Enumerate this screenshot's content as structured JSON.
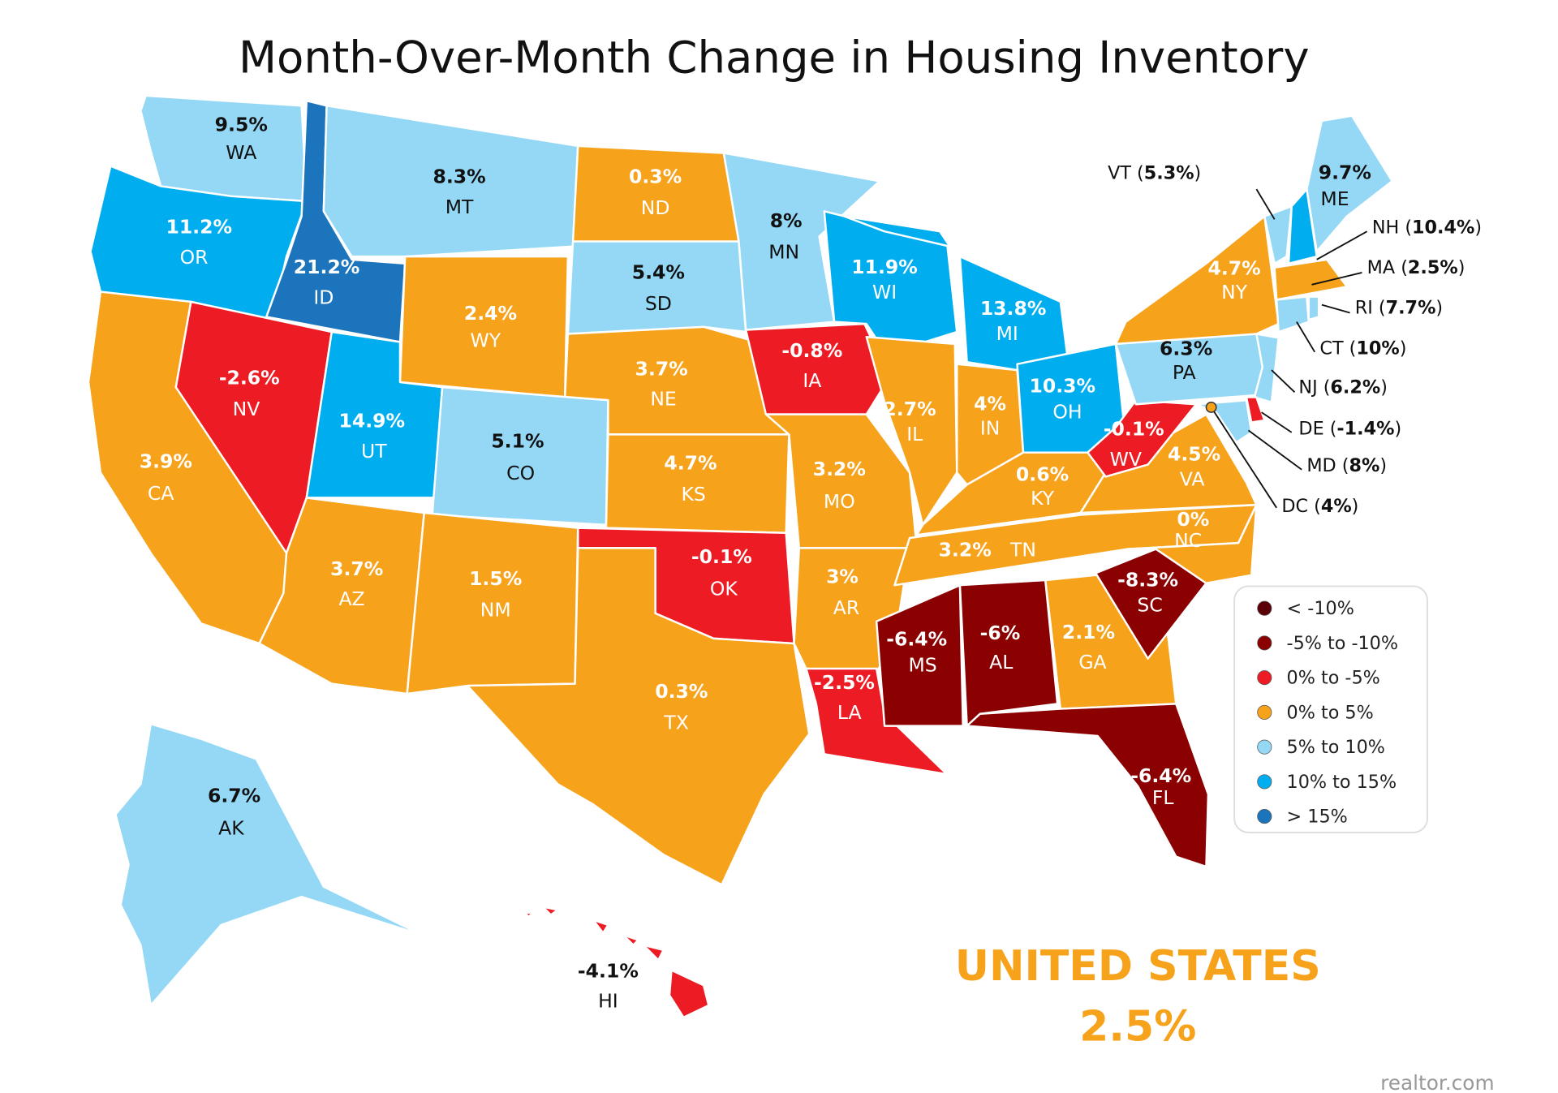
{
  "title": "Month-Over-Month Change in Housing Inventory",
  "national": {
    "label": "UNITED STATES",
    "value": "2.5%"
  },
  "source": "realtor.com",
  "colors": {
    "lt_neg10": "#5c0008",
    "neg5_neg10": "#8b0000",
    "neg0_neg5": "#ed1c24",
    "0_5": "#f7a21b",
    "5_10": "#94d8f6",
    "10_15": "#00aeef",
    "gt15": "#1c75bc"
  },
  "legend": [
    {
      "label": "< -10%",
      "key": "lt_neg10"
    },
    {
      "label": "-5% to -10%",
      "key": "neg5_neg10"
    },
    {
      "label": "0% to -5%",
      "key": "neg0_neg5"
    },
    {
      "label": "0% to 5%",
      "key": "0_5"
    },
    {
      "label": "5% to 10%",
      "key": "5_10"
    },
    {
      "label": "10% to 15%",
      "key": "10_15"
    },
    {
      "label": "> 15%",
      "key": "gt15"
    }
  ],
  "states": [
    {
      "abbr": "WA",
      "value": "9.5%",
      "key": "5_10"
    },
    {
      "abbr": "OR",
      "value": "11.2%",
      "key": "10_15"
    },
    {
      "abbr": "ID",
      "value": "21.2%",
      "key": "gt15"
    },
    {
      "abbr": "MT",
      "value": "8.3%",
      "key": "5_10"
    },
    {
      "abbr": "ND",
      "value": "0.3%",
      "key": "0_5"
    },
    {
      "abbr": "SD",
      "value": "5.4%",
      "key": "5_10"
    },
    {
      "abbr": "WY",
      "value": "2.4%",
      "key": "0_5"
    },
    {
      "abbr": "NE",
      "value": "3.7%",
      "key": "0_5"
    },
    {
      "abbr": "CA",
      "value": "3.9%",
      "key": "0_5"
    },
    {
      "abbr": "NV",
      "value": "-2.6%",
      "key": "neg0_neg5"
    },
    {
      "abbr": "UT",
      "value": "14.9%",
      "key": "10_15"
    },
    {
      "abbr": "CO",
      "value": "5.1%",
      "key": "5_10"
    },
    {
      "abbr": "AZ",
      "value": "3.7%",
      "key": "0_5"
    },
    {
      "abbr": "NM",
      "value": "1.5%",
      "key": "0_5"
    },
    {
      "abbr": "KS",
      "value": "4.7%",
      "key": "0_5"
    },
    {
      "abbr": "OK",
      "value": "-0.1%",
      "key": "neg0_neg5"
    },
    {
      "abbr": "TX",
      "value": "0.3%",
      "key": "0_5"
    },
    {
      "abbr": "MN",
      "value": "8%",
      "key": "5_10"
    },
    {
      "abbr": "IA",
      "value": "-0.8%",
      "key": "neg0_neg5"
    },
    {
      "abbr": "MO",
      "value": "3.2%",
      "key": "0_5"
    },
    {
      "abbr": "AR",
      "value": "3%",
      "key": "0_5"
    },
    {
      "abbr": "LA",
      "value": "-2.5%",
      "key": "neg0_neg5"
    },
    {
      "abbr": "WI",
      "value": "11.9%",
      "key": "10_15"
    },
    {
      "abbr": "IL",
      "value": "2.7%",
      "key": "0_5"
    },
    {
      "abbr": "MI",
      "value": "13.8%",
      "key": "10_15"
    },
    {
      "abbr": "IN",
      "value": "4%",
      "key": "0_5"
    },
    {
      "abbr": "OH",
      "value": "10.3%",
      "key": "10_15"
    },
    {
      "abbr": "KY",
      "value": "0.6%",
      "key": "0_5"
    },
    {
      "abbr": "TN",
      "value": "3.2%",
      "key": "0_5"
    },
    {
      "abbr": "MS",
      "value": "-6.4%",
      "key": "neg5_neg10"
    },
    {
      "abbr": "AL",
      "value": "-6%",
      "key": "neg5_neg10"
    },
    {
      "abbr": "GA",
      "value": "2.1%",
      "key": "0_5"
    },
    {
      "abbr": "FL",
      "value": "-6.4%",
      "key": "neg5_neg10"
    },
    {
      "abbr": "SC",
      "value": "-8.3%",
      "key": "neg5_neg10"
    },
    {
      "abbr": "NC",
      "value": "0%",
      "key": "0_5"
    },
    {
      "abbr": "VA",
      "value": "4.5%",
      "key": "0_5"
    },
    {
      "abbr": "WV",
      "value": "-0.1%",
      "key": "neg0_neg5"
    },
    {
      "abbr": "PA",
      "value": "6.3%",
      "key": "5_10"
    },
    {
      "abbr": "NY",
      "value": "4.7%",
      "key": "0_5"
    },
    {
      "abbr": "ME",
      "value": "9.7%",
      "key": "5_10"
    },
    {
      "abbr": "VT",
      "value": "5.3%",
      "key": "5_10"
    },
    {
      "abbr": "NH",
      "value": "10.4%",
      "key": "10_15"
    },
    {
      "abbr": "MA",
      "value": "2.5%",
      "key": "0_5"
    },
    {
      "abbr": "RI",
      "value": "7.7%",
      "key": "5_10"
    },
    {
      "abbr": "CT",
      "value": "10%",
      "key": "5_10"
    },
    {
      "abbr": "NJ",
      "value": "6.2%",
      "key": "5_10"
    },
    {
      "abbr": "DE",
      "value": "-1.4%",
      "key": "neg0_neg5"
    },
    {
      "abbr": "MD",
      "value": "8%",
      "key": "5_10"
    },
    {
      "abbr": "DC",
      "value": "4%",
      "key": "0_5"
    },
    {
      "abbr": "AK",
      "value": "6.7%",
      "key": "5_10"
    },
    {
      "abbr": "HI",
      "value": "-4.1%",
      "key": "neg0_neg5"
    }
  ]
}
